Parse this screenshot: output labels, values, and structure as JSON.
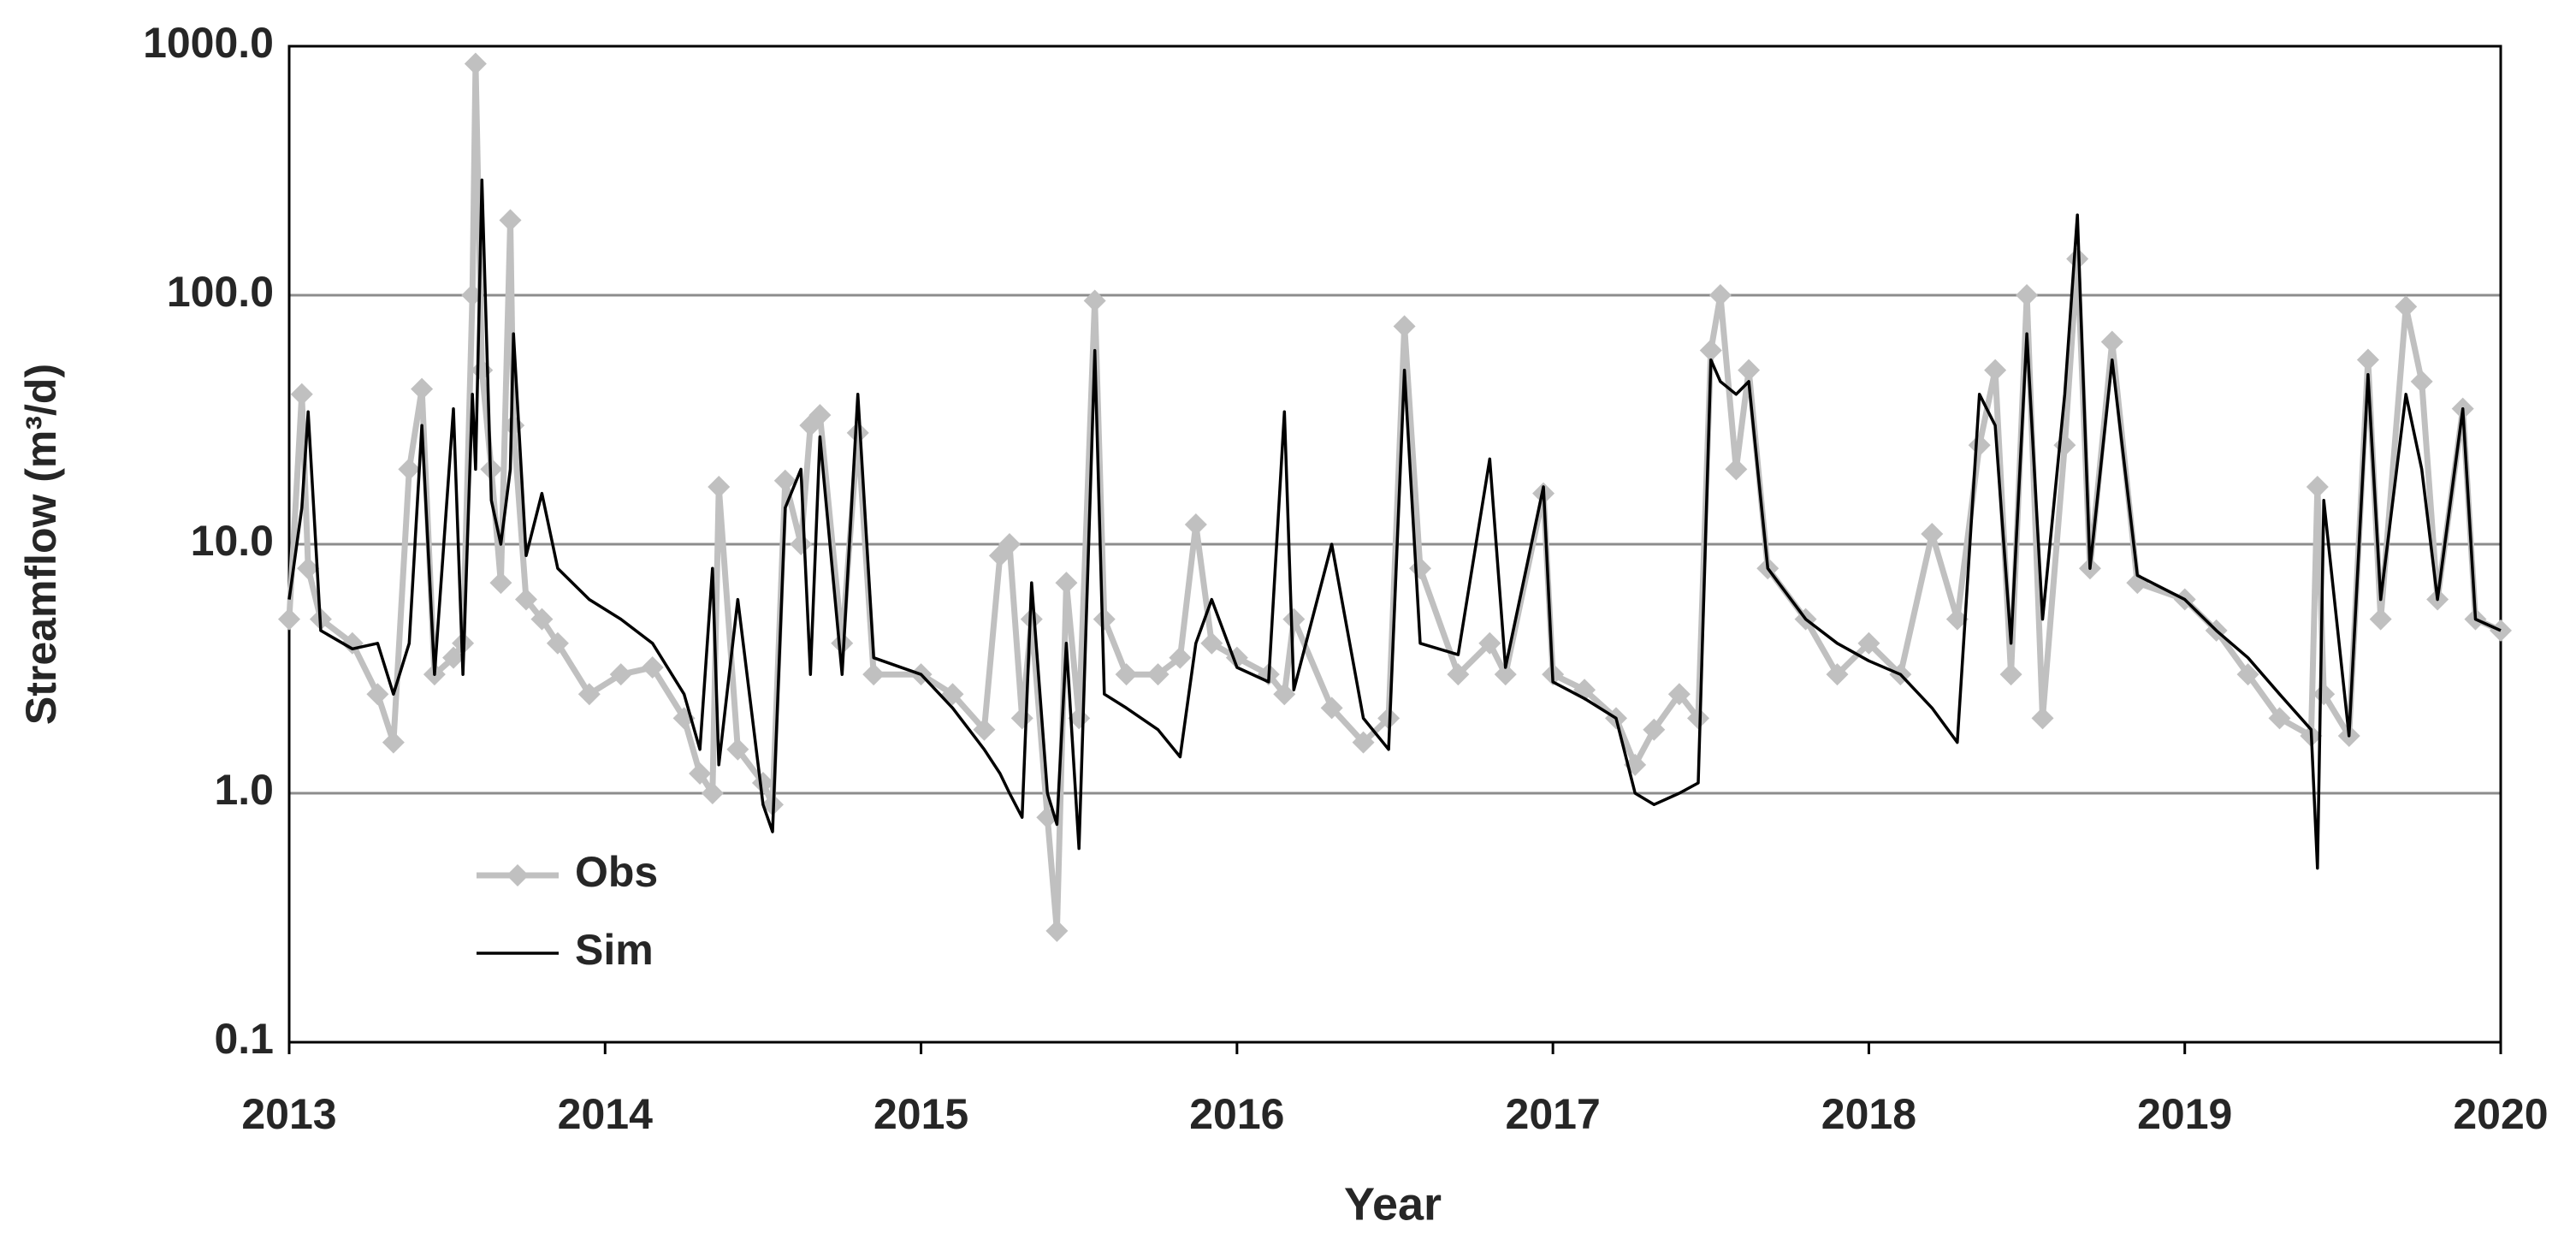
{
  "chart_data": {
    "type": "line",
    "x_label": "Year",
    "y_label": "Streamflow (m³/d)",
    "log_scale": true,
    "grid": true,
    "legend": "lower left",
    "xlim": [
      2013,
      2020
    ],
    "xticks": [
      2013,
      2014,
      2015,
      2016,
      2017,
      2018,
      2019,
      2020
    ],
    "ylim": [
      0.1,
      1000
    ],
    "yticks": [
      {
        "value": 0.1,
        "label": "0.1"
      },
      {
        "value": 1,
        "label": "1.0"
      },
      {
        "value": 10,
        "label": "10.0"
      },
      {
        "value": 100,
        "label": "100.0"
      },
      {
        "value": 1000,
        "label": "1000.0"
      }
    ],
    "x": [
      2013.0,
      2013.04,
      2013.06,
      2013.1,
      2013.2,
      2013.28,
      2013.33,
      2013.38,
      2013.42,
      2013.46,
      2013.52,
      2013.55,
      2013.58,
      2013.59,
      2013.61,
      2013.64,
      2013.67,
      2013.7,
      2013.71,
      2013.75,
      2013.8,
      2013.85,
      2013.95,
      2014.05,
      2014.15,
      2014.25,
      2014.3,
      2014.34,
      2014.36,
      2014.42,
      2014.5,
      2014.53,
      2014.57,
      2014.62,
      2014.65,
      2014.68,
      2014.75,
      2014.8,
      2014.85,
      2015.0,
      2015.1,
      2015.2,
      2015.25,
      2015.28,
      2015.32,
      2015.35,
      2015.4,
      2015.43,
      2015.46,
      2015.5,
      2015.55,
      2015.58,
      2015.65,
      2015.75,
      2015.82,
      2015.87,
      2015.92,
      2016.0,
      2016.1,
      2016.15,
      2016.18,
      2016.3,
      2016.4,
      2016.48,
      2016.53,
      2016.58,
      2016.7,
      2016.8,
      2016.85,
      2016.97,
      2017.0,
      2017.1,
      2017.2,
      2017.26,
      2017.32,
      2017.4,
      2017.46,
      2017.5,
      2017.53,
      2017.58,
      2017.62,
      2017.68,
      2017.8,
      2017.9,
      2018.0,
      2018.1,
      2018.2,
      2018.28,
      2018.35,
      2018.4,
      2018.45,
      2018.5,
      2018.55,
      2018.62,
      2018.66,
      2018.7,
      2018.77,
      2018.85,
      2019.0,
      2019.1,
      2019.2,
      2019.3,
      2019.4,
      2019.42,
      2019.44,
      2019.52,
      2019.58,
      2019.62,
      2019.7,
      2019.75,
      2019.8,
      2019.88,
      2019.92,
      2020.0
    ],
    "series": [
      {
        "name": "Obs",
        "color": "#c0c0c0",
        "marker": "diamond",
        "values": [
          5,
          40,
          8,
          5,
          4,
          2.5,
          1.6,
          20,
          42,
          3,
          3.5,
          4,
          100,
          850,
          50,
          20,
          7,
          200,
          30,
          6,
          5,
          4,
          2.5,
          3,
          3.2,
          2,
          1.2,
          1,
          17,
          1.5,
          1.1,
          0.9,
          18,
          10,
          30,
          33,
          4,
          28,
          3,
          3,
          2.5,
          1.8,
          9,
          10,
          2,
          5,
          0.8,
          0.28,
          7,
          2,
          95,
          5,
          3,
          3,
          3.5,
          12,
          4,
          3.5,
          3,
          2.5,
          5,
          2.2,
          1.6,
          2,
          75,
          8,
          3,
          4,
          3,
          16,
          3,
          2.6,
          2,
          1.3,
          1.8,
          2.5,
          2,
          60,
          100,
          20,
          50,
          8,
          5,
          3,
          4,
          3,
          11,
          5,
          25,
          50,
          3,
          100,
          2,
          25,
          140,
          8,
          65,
          7,
          6,
          4.5,
          3,
          2,
          1.7,
          17,
          2.5,
          1.7,
          55,
          5,
          90,
          45,
          6,
          35,
          5,
          4.5
        ]
      },
      {
        "name": "Sim",
        "color": "#000000",
        "values": [
          6,
          14,
          34,
          4.5,
          3.8,
          4,
          2.5,
          4,
          30,
          3,
          35,
          3,
          40,
          20,
          290,
          15,
          10,
          20,
          70,
          9,
          16,
          8,
          6,
          5,
          4,
          2.5,
          1.5,
          8,
          1.3,
          6,
          0.9,
          0.7,
          14,
          20,
          3,
          27,
          3,
          40,
          3.5,
          3,
          2.2,
          1.5,
          1.2,
          1,
          0.8,
          7,
          1,
          0.75,
          4,
          0.6,
          60,
          2.5,
          2.2,
          1.8,
          1.4,
          4,
          6,
          3.2,
          2.8,
          34,
          2.6,
          10,
          2,
          1.5,
          50,
          4,
          3.6,
          22,
          3.2,
          17,
          2.8,
          2.4,
          2,
          1,
          0.9,
          1,
          1.1,
          55,
          45,
          40,
          45,
          8,
          5,
          4,
          3.4,
          3,
          2.2,
          1.6,
          40,
          30,
          4,
          70,
          5,
          40,
          210,
          8,
          55,
          7.5,
          6,
          4.5,
          3.5,
          2.5,
          1.8,
          0.5,
          15,
          1.7,
          48,
          6,
          40,
          20,
          6,
          35,
          5,
          4.5
        ]
      }
    ]
  }
}
